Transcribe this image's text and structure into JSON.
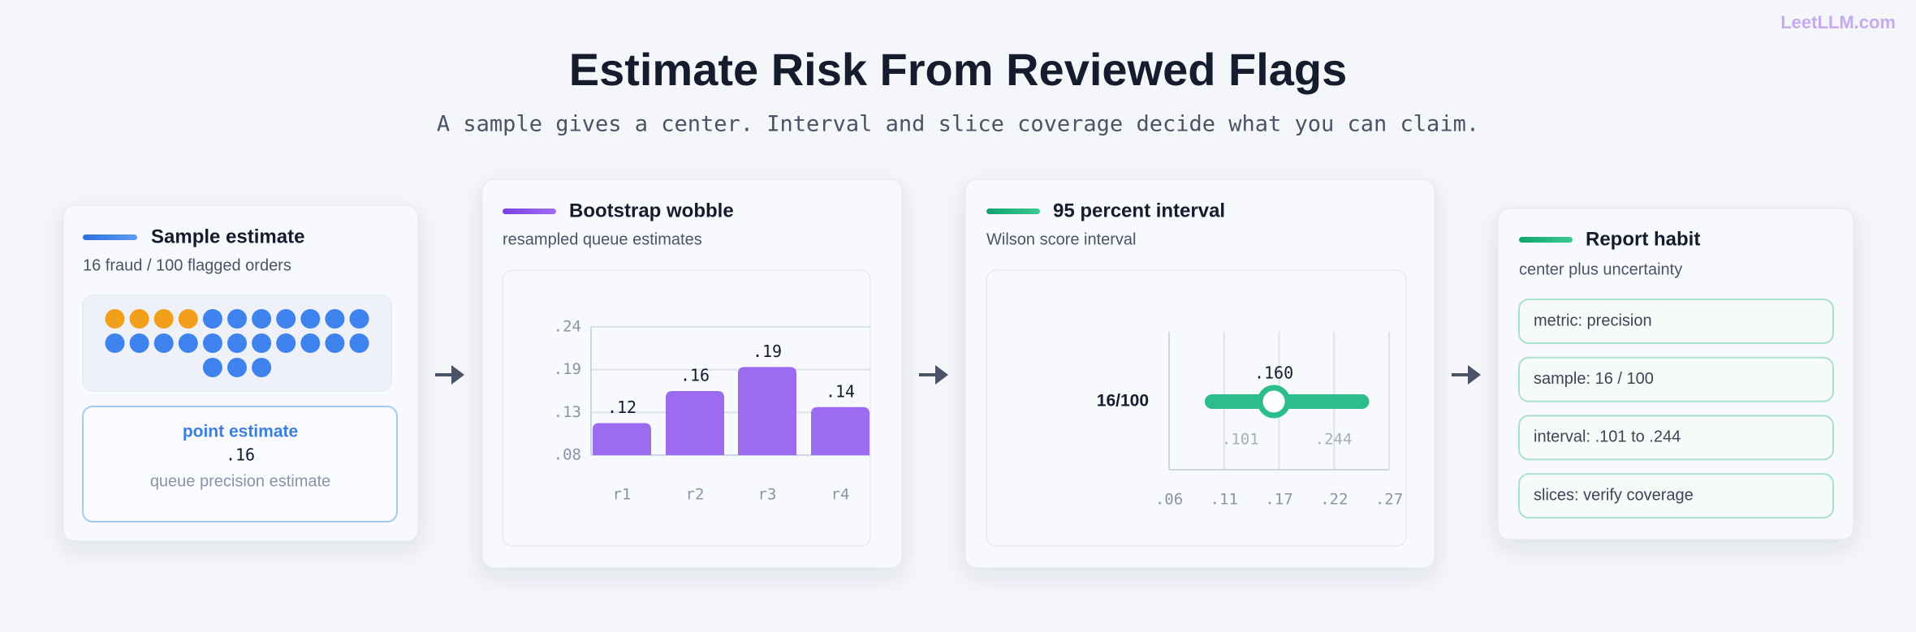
{
  "brand": "LeetLLM.com",
  "title": "Estimate Risk From Reviewed Flags",
  "subtitle": "A sample gives a center. Interval and slice coverage decide what you can claim.",
  "sample_card": {
    "title": "Sample estimate",
    "subtitle": "16 fraud / 100 flagged orders",
    "dots": {
      "highlighted": 4,
      "total": 25
    },
    "point": {
      "label": "point estimate",
      "value": ".16",
      "note": "queue precision estimate"
    }
  },
  "bootstrap_card": {
    "title": "Bootstrap wobble",
    "subtitle": "resampled queue estimates",
    "chart_data": {
      "type": "bar",
      "categories": [
        "r1",
        "r2",
        "r3",
        "r4"
      ],
      "values": [
        0.12,
        0.16,
        0.19,
        0.14
      ],
      "value_labels": [
        ".12",
        ".16",
        ".19",
        ".14"
      ],
      "color": "#9b6cf0",
      "ylim": [
        0.08,
        0.24
      ],
      "yticks": [
        {
          "value": 0.08,
          "label": ".08"
        },
        {
          "value": 0.1333,
          "label": ".13"
        },
        {
          "value": 0.1867,
          "label": ".19"
        },
        {
          "value": 0.24,
          "label": ".24"
        }
      ],
      "grid": true
    }
  },
  "interval_card": {
    "title": "95 percent interval",
    "subtitle": "Wilson score interval",
    "chart_data": {
      "type": "interval",
      "label": "16/100",
      "estimate": 0.16,
      "estimate_label": ".160",
      "low": 0.101,
      "low_label": ".101",
      "high": 0.244,
      "high_label": ".244",
      "color": "#2dbd8a",
      "xlim": [
        0.06,
        0.27
      ],
      "xticks": [
        {
          "value": 0.06,
          "label": ".06"
        },
        {
          "value": 0.1125,
          "label": ".11"
        },
        {
          "value": 0.165,
          "label": ".17"
        },
        {
          "value": 0.2175,
          "label": ".22"
        },
        {
          "value": 0.27,
          "label": ".27"
        }
      ],
      "grid": true
    }
  },
  "report_card": {
    "title": "Report habit",
    "subtitle": "center plus uncertainty",
    "items": [
      "metric: precision",
      "sample: 16 / 100",
      "interval: .101 to .244",
      "slices: verify coverage"
    ]
  }
}
